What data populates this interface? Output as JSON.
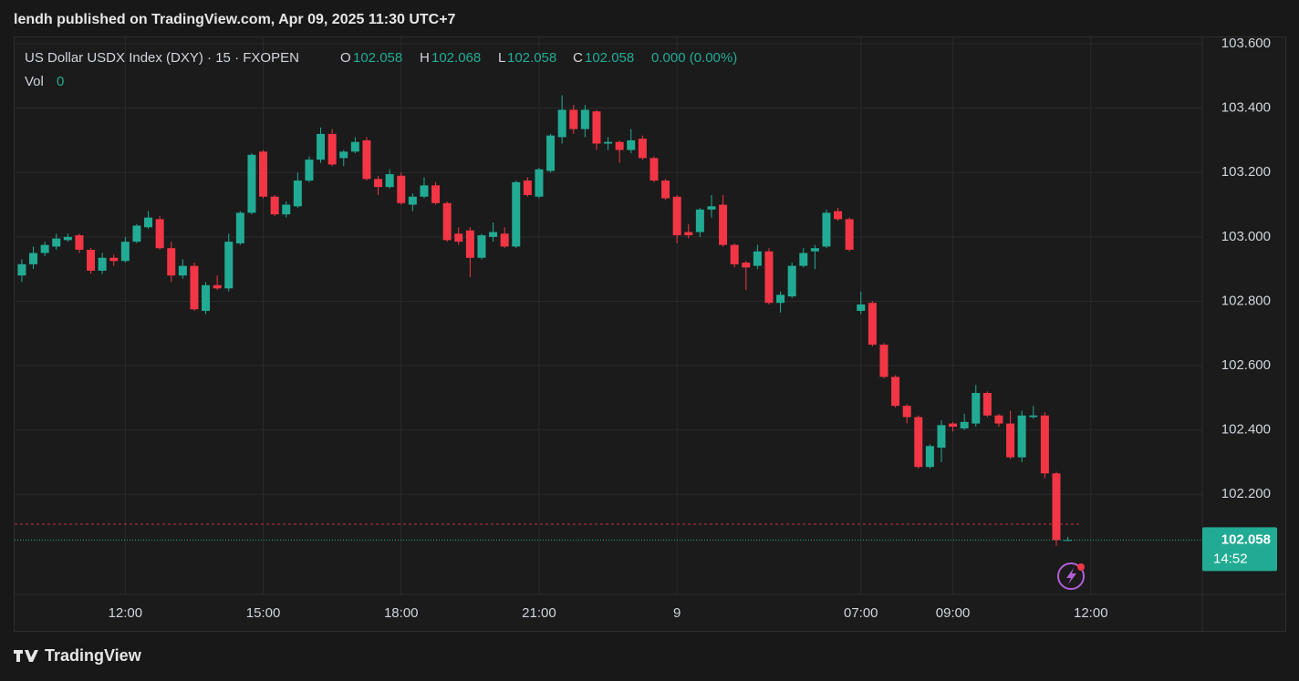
{
  "header": {
    "title": "lendh published on TradingView.com, Apr 09, 2025 11:30 UTC+7"
  },
  "footer": {
    "brand": "TradingView"
  },
  "chart_data": {
    "type": "candlestick",
    "symbol": "US Dollar USDX Index (DXY) · 15 · FXOPEN",
    "legend": [
      {
        "label": "O",
        "value": "102.058"
      },
      {
        "label": "H",
        "value": "102.068"
      },
      {
        "label": "L",
        "value": "102.058"
      },
      {
        "label": "C",
        "value": "102.058"
      }
    ],
    "change": "0.000 (0.00%)",
    "volume_label": "Vol",
    "volume": "0",
    "up_color": "#22ab94",
    "down_color": "#f23645",
    "grid": true,
    "open": [
      102.88,
      102.915,
      102.95,
      102.97,
      102.99,
      103.005,
      102.96,
      102.895,
      102.935,
      102.925,
      102.985,
      103.03,
      103.055,
      102.965,
      102.88,
      102.91,
      102.77,
      102.85,
      102.84,
      102.98,
      103.075,
      103.265,
      103.125,
      103.07,
      103.095,
      103.175,
      103.24,
      103.32,
      103.245,
      103.265,
      103.3,
      103.18,
      103.155,
      103.19,
      103.1,
      103.125,
      103.16,
      103.105,
      103.01,
      103.02,
      102.935,
      103.0,
      103.01,
      102.97,
      103.175,
      103.125,
      103.205,
      103.31,
      103.395,
      103.335,
      103.39,
      103.29,
      103.295,
      103.27,
      103.305,
      103.245,
      103.175,
      103.125,
      103.015,
      103.015,
      103.085,
      103.1,
      102.975,
      102.92,
      102.91,
      102.955,
      102.795,
      102.815,
      102.91,
      102.955,
      102.97,
      103.08,
      103.055,
      102.77,
      102.795,
      102.665,
      102.565,
      102.475,
      102.44,
      102.285,
      102.345,
      102.42,
      102.405,
      102.42,
      102.515,
      102.445,
      102.42,
      102.315,
      102.44,
      102.445,
      102.265,
      102.058
    ],
    "high": [
      102.93,
      102.97,
      102.985,
      103.01,
      103.01,
      103.01,
      102.965,
      102.95,
      102.945,
      103.0,
      103.04,
      103.08,
      103.065,
      102.985,
      102.93,
      102.92,
      102.86,
      102.88,
      103.01,
      103.08,
      103.26,
      103.27,
      103.13,
      103.11,
      103.2,
      103.25,
      103.34,
      103.335,
      103.27,
      103.31,
      103.31,
      103.19,
      103.21,
      103.2,
      103.135,
      103.185,
      103.17,
      103.11,
      103.03,
      103.03,
      103.01,
      103.045,
      103.03,
      103.175,
      103.185,
      103.215,
      103.32,
      103.44,
      103.41,
      103.41,
      103.395,
      103.31,
      103.3,
      103.335,
      103.315,
      103.25,
      103.18,
      103.13,
      103.04,
      103.09,
      103.13,
      103.13,
      102.98,
      102.925,
      102.975,
      102.965,
      102.83,
      102.92,
      102.965,
      102.975,
      103.085,
      103.09,
      103.06,
      102.83,
      102.8,
      102.67,
      102.57,
      102.48,
      102.445,
      102.355,
      102.43,
      102.425,
      102.45,
      102.54,
      102.52,
      102.45,
      102.46,
      102.46,
      102.475,
      102.455,
      102.27,
      102.068
    ],
    "low": [
      102.86,
      102.9,
      102.94,
      102.96,
      102.985,
      102.95,
      102.885,
      102.885,
      102.91,
      102.92,
      102.98,
      103.025,
      102.96,
      102.86,
      102.87,
      102.77,
      102.76,
      102.835,
      102.83,
      102.975,
      103.07,
      103.12,
      103.065,
      103.06,
      103.09,
      103.17,
      103.23,
      103.22,
      103.22,
      103.26,
      103.175,
      103.13,
      103.15,
      103.1,
      103.08,
      103.12,
      103.1,
      102.985,
      102.975,
      102.875,
      102.93,
      102.985,
      102.965,
      102.965,
      103.125,
      103.12,
      103.2,
      103.29,
      103.32,
      103.31,
      103.27,
      103.27,
      103.23,
      103.26,
      103.24,
      103.17,
      103.115,
      102.98,
      102.995,
      103.0,
      103.06,
      102.97,
      102.905,
      102.835,
      102.9,
      102.79,
      102.765,
      102.81,
      102.905,
      102.9,
      102.965,
      103.05,
      102.955,
      102.76,
      102.66,
      102.56,
      102.47,
      102.42,
      102.28,
      102.28,
      102.3,
      102.395,
      102.4,
      102.41,
      102.44,
      102.41,
      102.31,
      102.3,
      102.435,
      102.25,
      102.04,
      102.058
    ],
    "close": [
      102.915,
      102.95,
      102.975,
      102.995,
      103.0,
      102.96,
      102.895,
      102.935,
      102.925,
      102.985,
      103.035,
      103.06,
      102.965,
      102.88,
      102.91,
      102.775,
      102.85,
      102.84,
      102.985,
      103.075,
      103.255,
      103.125,
      103.07,
      103.1,
      103.175,
      103.24,
      103.32,
      103.225,
      103.265,
      103.295,
      103.18,
      103.155,
      103.195,
      103.105,
      103.125,
      103.16,
      103.105,
      102.99,
      102.985,
      102.935,
      103.005,
      103.015,
      102.97,
      103.17,
      103.13,
      103.21,
      103.315,
      103.395,
      103.335,
      103.395,
      103.29,
      103.295,
      103.27,
      103.3,
      103.245,
      103.175,
      103.12,
      103.005,
      103.005,
      103.085,
      103.095,
      102.975,
      102.915,
      102.905,
      102.955,
      102.795,
      102.82,
      102.91,
      102.95,
      102.965,
      103.075,
      103.055,
      102.96,
      102.79,
      102.665,
      102.565,
      102.475,
      102.44,
      102.285,
      102.35,
      102.415,
      102.41,
      102.425,
      102.515,
      102.445,
      102.42,
      102.315,
      102.445,
      102.445,
      102.265,
      102.058,
      102.058
    ],
    "reference_line": 102.107,
    "last_price": 102.058,
    "countdown": "14:52",
    "xlim": [
      -0.63,
      102.7
    ],
    "xticks": [
      {
        "value": 9,
        "label": "12:00"
      },
      {
        "value": 21,
        "label": "15:00"
      },
      {
        "value": 33,
        "label": "18:00"
      },
      {
        "value": 45,
        "label": "21:00"
      },
      {
        "value": 57,
        "label": "9"
      },
      {
        "value": 73,
        "label": "07:00"
      },
      {
        "value": 81,
        "label": "09:00"
      },
      {
        "value": 93,
        "label": "12:00"
      }
    ],
    "ylim": [
      101.889,
      103.62
    ],
    "yticks": [
      {
        "value": 102.2,
        "label": "102.200"
      },
      {
        "value": 102.4,
        "label": "102.400"
      },
      {
        "value": 102.6,
        "label": "102.600"
      },
      {
        "value": 102.8,
        "label": "102.800"
      },
      {
        "value": 103.0,
        "label": "103.000"
      },
      {
        "value": 103.2,
        "label": "103.200"
      },
      {
        "value": 103.4,
        "label": "103.400"
      },
      {
        "value": 103.6,
        "label": "103.600"
      }
    ]
  }
}
